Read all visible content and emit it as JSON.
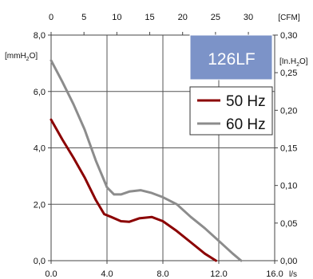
{
  "chart_data": {
    "type": "line",
    "model_label": "126LF",
    "model_box_color": "#7C93C8",
    "grid": true,
    "legend_placement": "top-right",
    "x_bottom": {
      "unit_label": "l/s",
      "ticks": [
        {
          "value": 0,
          "label": "0.0"
        },
        {
          "value": 4,
          "label": "4.0"
        },
        {
          "value": 8,
          "label": "8.0"
        },
        {
          "value": 12,
          "label": "12.0"
        },
        {
          "value": 16,
          "label": "16.0"
        }
      ],
      "range": [
        0,
        16
      ]
    },
    "x_top": {
      "unit_label": "[CFM]",
      "ticks": [
        {
          "value": 0,
          "label": "0"
        },
        {
          "value": 5,
          "label": "5"
        },
        {
          "value": 10,
          "label": "10"
        },
        {
          "value": 15,
          "label": "15"
        },
        {
          "value": 20,
          "label": "20"
        },
        {
          "value": 25,
          "label": "25"
        },
        {
          "value": 30,
          "label": "30"
        }
      ]
    },
    "y_left": {
      "unit_main": "[mmH",
      "unit_sub": "2",
      "unit_tail": "O]",
      "ticks": [
        {
          "value": 0,
          "label": "0,0"
        },
        {
          "value": 2,
          "label": "2,0"
        },
        {
          "value": 4,
          "label": "4,0"
        },
        {
          "value": 6,
          "label": "6,0"
        },
        {
          "value": 8,
          "label": "8,0"
        }
      ],
      "range": [
        0,
        8
      ]
    },
    "y_right": {
      "unit_main": "[In.H",
      "unit_sub": "2",
      "unit_tail": "O]",
      "ticks": [
        {
          "value": 0.0,
          "label": "0,00"
        },
        {
          "value": 0.05,
          "label": "0,05"
        },
        {
          "value": 0.1,
          "label": "0,10"
        },
        {
          "value": 0.15,
          "label": "0,15"
        },
        {
          "value": 0.2,
          "label": "0,20"
        },
        {
          "value": 0.25,
          "label": "0,25"
        },
        {
          "value": 0.3,
          "label": "0,30"
        }
      ]
    },
    "series": [
      {
        "name": "50 Hz",
        "color": "#8B0000",
        "points": [
          [
            0.0,
            5.0
          ],
          [
            0.8,
            4.3
          ],
          [
            1.6,
            3.65
          ],
          [
            2.4,
            2.95
          ],
          [
            3.2,
            2.15
          ],
          [
            3.8,
            1.65
          ],
          [
            4.3,
            1.55
          ],
          [
            5.0,
            1.4
          ],
          [
            5.6,
            1.38
          ],
          [
            6.3,
            1.5
          ],
          [
            7.2,
            1.55
          ],
          [
            8.0,
            1.4
          ],
          [
            9.0,
            1.05
          ],
          [
            10.0,
            0.65
          ],
          [
            11.0,
            0.25
          ],
          [
            11.8,
            0.0
          ]
        ]
      },
      {
        "name": "60 Hz",
        "color": "#8C8C8C",
        "points": [
          [
            0.0,
            7.1
          ],
          [
            0.8,
            6.35
          ],
          [
            1.6,
            5.55
          ],
          [
            2.4,
            4.65
          ],
          [
            3.2,
            3.55
          ],
          [
            4.0,
            2.6
          ],
          [
            4.5,
            2.35
          ],
          [
            5.0,
            2.35
          ],
          [
            5.6,
            2.45
          ],
          [
            6.4,
            2.5
          ],
          [
            7.2,
            2.4
          ],
          [
            8.0,
            2.25
          ],
          [
            9.0,
            2.0
          ],
          [
            10.0,
            1.55
          ],
          [
            11.0,
            1.15
          ],
          [
            12.0,
            0.7
          ],
          [
            13.0,
            0.25
          ],
          [
            13.6,
            0.0
          ]
        ]
      }
    ]
  }
}
